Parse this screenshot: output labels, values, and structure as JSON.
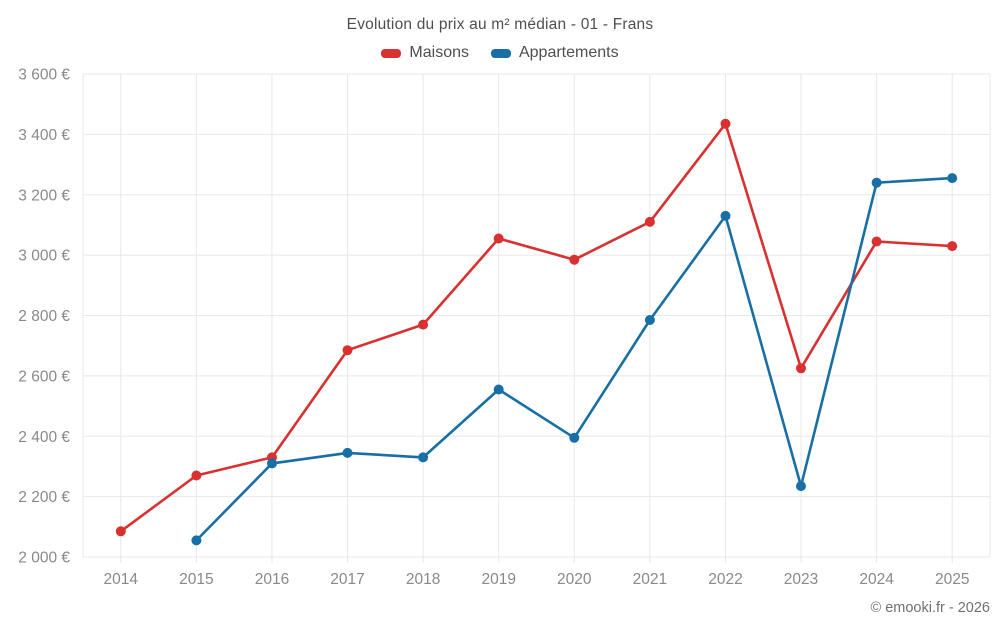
{
  "title": "Evolution du prix au m² médian - 01 - Frans",
  "legend": {
    "items": [
      {
        "label": "Maisons",
        "color": "#d93030",
        "icon": "maisons-swatch-icon"
      },
      {
        "label": "Appartements",
        "color": "#186fa5",
        "icon": "appartements-swatch-icon"
      }
    ]
  },
  "footer": {
    "copyright": "© emooki.fr - 2026"
  },
  "colors": {
    "maisons_red": "#d93030",
    "appartements_blue": "#186fa5",
    "gridline": "#e8e8e8",
    "axis_text": "#87898c",
    "title_text": "#4d4f52"
  },
  "chart_data": {
    "type": "line",
    "title": "Evolution du prix au m² médian - 01 - Frans",
    "categories": [
      "2014",
      "2015",
      "2016",
      "2017",
      "2018",
      "2019",
      "2020",
      "2021",
      "2022",
      "2023",
      "2024",
      "2025"
    ],
    "series": [
      {
        "name": "Maisons",
        "color": "#d93030",
        "values": [
          2085,
          2270,
          2330,
          2685,
          2770,
          3055,
          2985,
          3110,
          3435,
          2625,
          3045,
          3030
        ]
      },
      {
        "name": "Appartements",
        "color": "#186fa5",
        "values": [
          null,
          2055,
          2310,
          2345,
          2330,
          2555,
          2395,
          2785,
          3130,
          2235,
          3240,
          3255
        ]
      }
    ],
    "xlabel": "",
    "ylabel": "",
    "ylim": [
      2000,
      3600
    ],
    "y_step": 200,
    "y_tick_suffix": " €",
    "grid": true,
    "legend_position": "top"
  }
}
